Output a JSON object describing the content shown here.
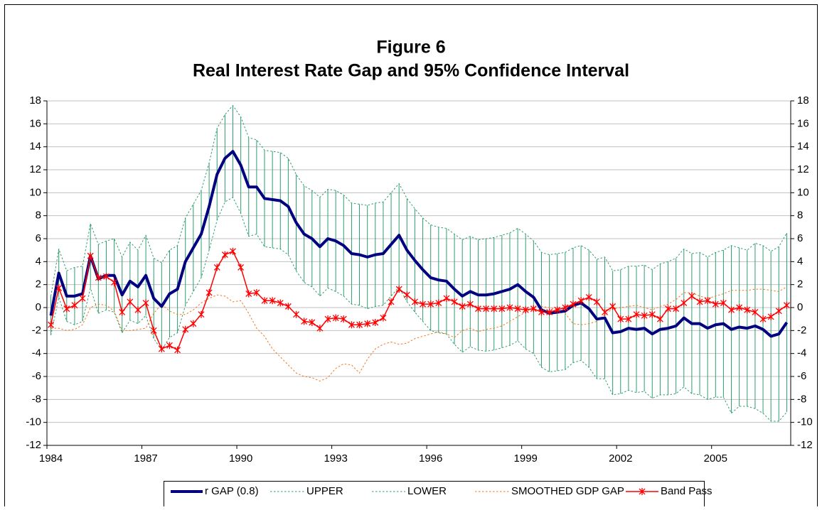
{
  "chart_data": {
    "type": "line",
    "title": "Figure 6",
    "subtitle": "Real Interest Rate Gap and 95% Confidence Interval",
    "categories": [
      "1984",
      null,
      null,
      null,
      null,
      null,
      null,
      null,
      null,
      null,
      null,
      null,
      "1987",
      null,
      null,
      null,
      null,
      null,
      null,
      null,
      null,
      null,
      null,
      null,
      "1990",
      null,
      null,
      null,
      null,
      null,
      null,
      null,
      null,
      null,
      null,
      null,
      "1993",
      null,
      null,
      null,
      null,
      null,
      null,
      null,
      null,
      null,
      null,
      null,
      "1996",
      null,
      null,
      null,
      null,
      null,
      null,
      null,
      null,
      null,
      null,
      null,
      "1999",
      null,
      null,
      null,
      null,
      null,
      null,
      null,
      null,
      null,
      null,
      null,
      "2002",
      null,
      null,
      null,
      null,
      null,
      null,
      null,
      null,
      null,
      null,
      null,
      "2005",
      null,
      null,
      null,
      null,
      null,
      null,
      null,
      null,
      null
    ],
    "ylim": [
      -12,
      18
    ],
    "yticks": [
      -12,
      -10,
      -8,
      -6,
      -4,
      -2,
      0,
      2,
      4,
      6,
      8,
      10,
      12,
      14,
      16,
      18
    ],
    "y2lim": [
      -12,
      18
    ],
    "y2ticks": [
      -12,
      -10,
      -8,
      -6,
      -4,
      -2,
      0,
      2,
      4,
      6,
      8,
      10,
      12,
      14,
      16,
      18
    ],
    "grid": true,
    "legend": "bottom",
    "high_low_lines": {
      "color": "#2e9e6e"
    },
    "series": [
      {
        "name": "r GAP (0.8)",
        "color": "#000080",
        "line_style": "solid",
        "width": 4,
        "values": [
          -0.7,
          3.0,
          1.0,
          1.0,
          1.2,
          4.5,
          2.5,
          2.8,
          2.8,
          1.1,
          2.3,
          1.8,
          2.8,
          0.8,
          0.1,
          1.2,
          1.6,
          4.0,
          5.2,
          6.4,
          8.8,
          11.6,
          13.0,
          13.6,
          12.4,
          10.5,
          10.5,
          9.5,
          9.4,
          9.3,
          8.8,
          7.4,
          6.4,
          6.0,
          5.3,
          6.0,
          5.8,
          5.4,
          4.7,
          4.6,
          4.4,
          4.6,
          4.7,
          5.5,
          6.3,
          5.0,
          4.1,
          3.3,
          2.6,
          2.4,
          2.3,
          1.6,
          1.0,
          1.4,
          1.1,
          1.1,
          1.2,
          1.4,
          1.6,
          2.0,
          1.4,
          0.9,
          -0.2,
          -0.5,
          -0.4,
          -0.3,
          0.2,
          0.4,
          -0.1,
          -1.0,
          -0.9,
          -2.2,
          -2.1,
          -1.8,
          -1.9,
          -1.8,
          -2.3,
          -1.9,
          -1.8,
          -1.6,
          -0.9,
          -1.4,
          -1.4,
          -1.8,
          -1.5,
          -1.4,
          -1.9,
          -1.7,
          -1.8,
          -1.6,
          -1.9,
          -2.5,
          -2.3,
          -1.3
        ]
      },
      {
        "name": "UPPER",
        "color": "#2e9e6e",
        "line_style": "dotted",
        "width": 1,
        "values": [
          1.0,
          5.1,
          3.2,
          3.5,
          3.6,
          7.3,
          5.5,
          5.8,
          6.0,
          4.4,
          5.7,
          5.0,
          6.3,
          4.3,
          3.9,
          5.0,
          5.4,
          7.8,
          9.0,
          10.2,
          12.6,
          15.6,
          16.8,
          17.6,
          16.6,
          14.8,
          14.6,
          13.7,
          13.6,
          13.5,
          13.0,
          11.6,
          10.6,
          10.2,
          9.6,
          10.3,
          10.2,
          9.8,
          9.1,
          9.0,
          8.9,
          9.1,
          9.2,
          10.0,
          10.8,
          9.5,
          8.6,
          7.8,
          7.2,
          7.0,
          6.9,
          6.4,
          5.9,
          6.2,
          5.9,
          6.0,
          6.1,
          6.3,
          6.5,
          6.9,
          6.4,
          5.8,
          4.8,
          4.6,
          4.7,
          4.8,
          5.2,
          5.4,
          5.0,
          4.2,
          4.4,
          3.2,
          3.3,
          3.6,
          3.6,
          3.7,
          3.3,
          3.8,
          4.0,
          4.3,
          5.1,
          4.7,
          4.8,
          4.4,
          4.8,
          5.0,
          5.4,
          5.2,
          5.0,
          5.6,
          5.4,
          4.9,
          5.3,
          6.5
        ]
      },
      {
        "name": "LOWER",
        "color": "#2e9e6e",
        "line_style": "dotted",
        "width": 1,
        "values": [
          -2.4,
          0.9,
          -1.2,
          -1.5,
          -1.2,
          1.7,
          -0.5,
          -0.2,
          -0.4,
          -2.2,
          -1.1,
          -1.4,
          -0.7,
          -2.7,
          -3.7,
          -2.6,
          -2.2,
          0.2,
          1.4,
          2.6,
          5.0,
          7.6,
          9.2,
          9.6,
          8.2,
          6.2,
          6.4,
          5.3,
          5.2,
          5.1,
          4.6,
          3.2,
          2.2,
          1.8,
          1.0,
          1.7,
          1.4,
          1.0,
          0.3,
          0.2,
          -0.1,
          0.1,
          0.2,
          1.0,
          1.8,
          0.5,
          -0.4,
          -1.2,
          -2.0,
          -2.2,
          -2.3,
          -3.2,
          -3.9,
          -3.4,
          -3.7,
          -3.8,
          -3.7,
          -3.5,
          -3.3,
          -2.9,
          -3.6,
          -4.0,
          -5.2,
          -5.6,
          -5.5,
          -5.4,
          -4.8,
          -4.6,
          -5.2,
          -6.2,
          -6.2,
          -7.6,
          -7.5,
          -7.2,
          -7.4,
          -7.3,
          -7.9,
          -7.6,
          -7.6,
          -7.5,
          -6.9,
          -7.5,
          -7.6,
          -8.0,
          -7.8,
          -7.8,
          -9.2,
          -8.6,
          -8.6,
          -8.8,
          -9.2,
          -9.9,
          -9.9,
          -9.1
        ]
      },
      {
        "name": "SMOOTHED GDP GAP",
        "color": "#f07820",
        "line_style": "dotted",
        "width": 1,
        "values": [
          -1.8,
          -1.8,
          -2.0,
          -1.9,
          -1.5,
          0.0,
          0.3,
          0.2,
          -0.3,
          -2.0,
          -2.0,
          -1.9,
          -1.8,
          -0.5,
          0.3,
          -0.3,
          -0.6,
          -0.6,
          -0.2,
          0.4,
          0.8,
          1.1,
          1.0,
          0.5,
          0.6,
          -0.5,
          -1.8,
          -2.5,
          -3.6,
          -4.3,
          -5.0,
          -5.7,
          -6.0,
          -6.1,
          -6.4,
          -6.1,
          -5.3,
          -4.9,
          -5.0,
          -5.7,
          -4.5,
          -3.6,
          -3.2,
          -3.0,
          -3.2,
          -3.1,
          -2.7,
          -2.5,
          -2.3,
          -2.1,
          -2.3,
          -2.6,
          -2.0,
          -1.8,
          -2.1,
          -1.9,
          -1.8,
          -1.6,
          -1.2,
          -0.8,
          -0.4,
          0.0,
          0.1,
          0.0,
          -0.2,
          -0.5,
          -1.4,
          -1.5,
          -1.4,
          -1.2,
          -0.6,
          -0.1,
          0.0,
          0.1,
          0.2,
          0.0,
          -0.2,
          0.1,
          0.3,
          0.7,
          1.3,
          1.3,
          1.0,
          0.8,
          1.0,
          1.2,
          1.5,
          1.5,
          1.5,
          1.6,
          1.6,
          1.5,
          1.4,
          1.8
        ]
      },
      {
        "name": "Band Pass",
        "color": "#ff0000",
        "line_style": "solid",
        "width": 1.5,
        "marker": "asterisk",
        "values": [
          -1.5,
          1.7,
          -0.1,
          0.2,
          0.8,
          4.5,
          2.6,
          2.7,
          2.2,
          -0.4,
          0.5,
          -0.2,
          0.4,
          -2.0,
          -3.6,
          -3.3,
          -3.7,
          -1.9,
          -1.4,
          -0.6,
          1.3,
          3.5,
          4.6,
          4.9,
          3.5,
          1.2,
          1.3,
          0.6,
          0.6,
          0.4,
          0.1,
          -0.6,
          -1.2,
          -1.3,
          -1.8,
          -1.0,
          -0.9,
          -1.0,
          -1.5,
          -1.5,
          -1.4,
          -1.3,
          -0.9,
          0.5,
          1.6,
          1.1,
          0.5,
          0.3,
          0.3,
          0.4,
          0.8,
          0.5,
          0.1,
          0.3,
          -0.1,
          -0.1,
          -0.1,
          -0.1,
          0.0,
          -0.1,
          -0.2,
          -0.1,
          -0.4,
          -0.4,
          -0.2,
          0.0,
          0.3,
          0.6,
          0.9,
          0.5,
          -0.4,
          0.1,
          -1.0,
          -1.0,
          -0.6,
          -0.7,
          -0.6,
          -1.0,
          -0.1,
          -0.1,
          0.4,
          1.0,
          0.5,
          0.6,
          0.3,
          0.4,
          -0.2,
          0.0,
          -0.2,
          -0.4,
          -1.0,
          -0.8,
          -0.3,
          0.2
        ]
      }
    ]
  }
}
